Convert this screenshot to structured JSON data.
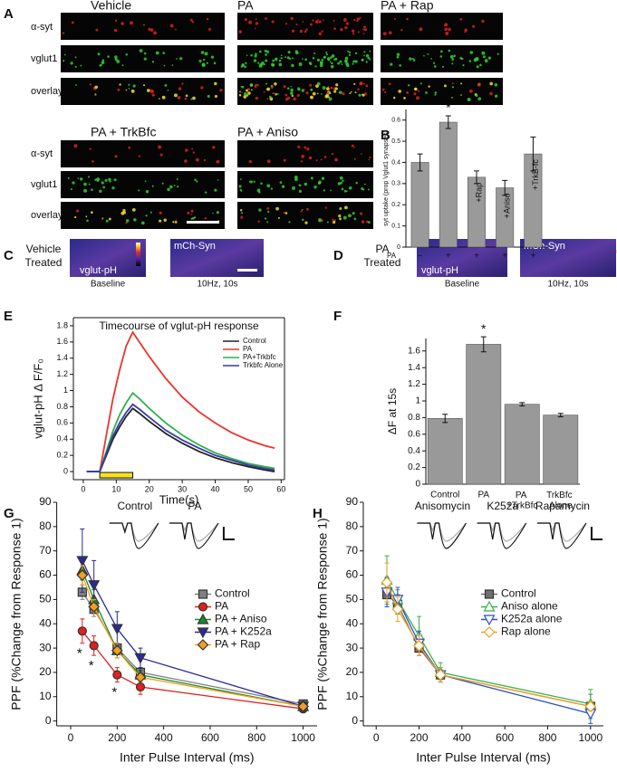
{
  "panel_labels": [
    "A",
    "B",
    "C",
    "D",
    "E",
    "F",
    "G",
    "H"
  ],
  "panel_a": {
    "conditions": [
      "Vehicle",
      "PA",
      "PA + Rap",
      "PA + TrkBfc",
      "PA + Aniso"
    ],
    "rows": [
      "α-syt",
      "vglut1",
      "overlay"
    ]
  },
  "panel_c": {
    "treatment": [
      "Vehicle",
      "Treated"
    ],
    "channels": [
      "vglut-pH",
      "mCh-Syn"
    ],
    "timepoints": [
      "Baseline",
      "10Hz, 10s"
    ]
  },
  "panel_d": {
    "treatment": [
      "PA",
      "Treated"
    ],
    "channels": [
      "vglut-pH",
      "mCh-Syn"
    ],
    "timepoints": [
      "Baseline",
      "10Hz, 10s"
    ]
  },
  "chart_data": [
    {
      "type": "bar",
      "ylabel": "syt uptake (prop Vglut1 synapses)",
      "xlabel": "PA",
      "categories": [
        "−",
        "+",
        "+",
        "+",
        "+"
      ],
      "values": [
        0.4,
        0.59,
        0.33,
        0.28,
        0.44
      ],
      "errors": [
        0.04,
        0.03,
        0.03,
        0.035,
        0.08
      ],
      "bar_labels": [
        null,
        null,
        "+Rap",
        "+Aniso",
        "+TrkB-fc"
      ],
      "significance": [
        null,
        "*",
        null,
        null,
        null
      ],
      "color": "#9a9a9a",
      "ylim": [
        0,
        0.65
      ],
      "yticks": [
        0,
        0.1,
        0.2,
        0.3,
        0.4,
        0.5,
        0.6
      ]
    },
    {
      "type": "line",
      "title": "Timecourse of vglut-pH response",
      "xlabel": "Time(s)",
      "ylabel": "vglut-pH Δ F/F₀",
      "x": [
        1,
        3,
        5,
        7,
        9,
        11,
        13,
        15,
        17,
        20,
        25,
        30,
        35,
        40,
        45,
        50,
        55,
        58
      ],
      "series": [
        {
          "name": "Control",
          "color": "#222222",
          "values": [
            0,
            0,
            0,
            0.2,
            0.4,
            0.55,
            0.68,
            0.78,
            0.72,
            0.62,
            0.47,
            0.35,
            0.25,
            0.17,
            0.11,
            0.06,
            0.02,
            0
          ]
        },
        {
          "name": "PA",
          "color": "#e8352b",
          "values": [
            0,
            0,
            0,
            0.45,
            0.9,
            1.25,
            1.55,
            1.72,
            1.6,
            1.42,
            1.15,
            0.92,
            0.74,
            0.6,
            0.48,
            0.39,
            0.32,
            0.29
          ]
        },
        {
          "name": "PA+Trkbfc",
          "color": "#2bb24c",
          "values": [
            0,
            0,
            0,
            0.25,
            0.5,
            0.7,
            0.85,
            0.97,
            0.9,
            0.78,
            0.6,
            0.45,
            0.33,
            0.23,
            0.16,
            0.1,
            0.06,
            0.04
          ]
        },
        {
          "name": "Trkbfc Alone",
          "color": "#3a3aa8",
          "values": [
            0,
            0,
            0,
            0.22,
            0.44,
            0.6,
            0.73,
            0.83,
            0.77,
            0.67,
            0.51,
            0.39,
            0.29,
            0.2,
            0.14,
            0.08,
            0.04,
            0.02
          ]
        }
      ],
      "stimulus": [
        5,
        15
      ],
      "stimulus_color": "#f5e31a",
      "frame": true,
      "legend": "upper right",
      "xlim": [
        -3,
        61
      ],
      "ylim": [
        -0.1,
        1.9
      ],
      "xticks": [
        0,
        10,
        20,
        30,
        40,
        50,
        60
      ],
      "yticks": [
        0,
        0.2,
        0.4,
        0.6,
        0.8,
        1,
        1.2,
        1.4,
        1.6,
        1.8
      ]
    },
    {
      "type": "bar",
      "ylabel": "ΔF at 15s",
      "categories": [
        "Control",
        "PA",
        "PA +TrkBfc",
        "TrkBfc Alone"
      ],
      "values": [
        0.79,
        1.68,
        0.96,
        0.83
      ],
      "errors": [
        0.05,
        0.09,
        0.02,
        0.02
      ],
      "significance": [
        null,
        "*",
        null,
        null
      ],
      "color": "#999999",
      "ylim": [
        0,
        1.75
      ],
      "yticks": [
        0,
        0.2,
        0.4,
        0.6,
        0.8,
        1,
        1.2,
        1.4,
        1.6
      ]
    },
    {
      "type": "line",
      "xlabel": "Inter Pulse Interval (ms)",
      "ylabel": "PPF (%Change from Response 1)",
      "x": [
        50,
        100,
        200,
        300,
        1000
      ],
      "series": [
        {
          "name": "Control",
          "color": "#808080",
          "marker": "square",
          "filled": true,
          "values": [
            53,
            46,
            30,
            20,
            7
          ],
          "errors": [
            3,
            3,
            2,
            2,
            1
          ]
        },
        {
          "name": "PA",
          "color": "#e0201b",
          "marker": "circle",
          "filled": true,
          "values": [
            37,
            31,
            19,
            14,
            5
          ],
          "errors": [
            5,
            4,
            3,
            3,
            1
          ],
          "significance": [
            "*",
            "*",
            "*",
            null,
            null
          ]
        },
        {
          "name": "PA + Aniso",
          "color": "#1a8a2a",
          "marker": "triangle-up",
          "filled": true,
          "values": [
            62,
            50,
            29,
            19,
            6
          ],
          "errors": [
            4,
            4,
            3,
            2,
            1
          ]
        },
        {
          "name": "PA + K252a",
          "color": "#2a2a9a",
          "marker": "triangle-down",
          "filled": true,
          "values": [
            66,
            56,
            38,
            26,
            6
          ],
          "errors": [
            13,
            10,
            7,
            4,
            2
          ]
        },
        {
          "name": "PA + Rap",
          "color": "#f0a020",
          "marker": "diamond",
          "filled": true,
          "values": [
            60,
            47,
            29,
            18,
            6
          ],
          "errors": [
            4,
            3,
            3,
            2,
            1
          ]
        }
      ],
      "insets": [
        "Control",
        "PA"
      ],
      "legend": "center right",
      "xlim": [
        -60,
        1060
      ],
      "ylim": [
        -2,
        90
      ],
      "xticks": [
        0,
        200,
        400,
        600,
        800,
        1000
      ],
      "yticks": [
        0,
        10,
        20,
        30,
        40,
        50,
        60,
        70,
        80,
        90
      ]
    },
    {
      "type": "line",
      "xlabel": "Inter Pulse Interval (ms)",
      "ylabel": "PPF (%Change from Response 1)",
      "x": [
        50,
        100,
        200,
        300,
        1000
      ],
      "series": [
        {
          "name": "Control",
          "color": "#707070",
          "marker": "square",
          "filled": true,
          "values": [
            52,
            48,
            30,
            19,
            6
          ],
          "errors": [
            3,
            4,
            3,
            2,
            5
          ]
        },
        {
          "name": "Aniso alone",
          "color": "#3ab04a",
          "marker": "triangle-up",
          "filled": false,
          "values": [
            58,
            50,
            35,
            20,
            7
          ],
          "errors": [
            10,
            4,
            8,
            4,
            6
          ]
        },
        {
          "name": "K252a alone",
          "color": "#3050c0",
          "marker": "triangle-down",
          "filled": false,
          "values": [
            53,
            50,
            32,
            19,
            3
          ],
          "errors": [
            6,
            5,
            5,
            3,
            4
          ]
        },
        {
          "name": "Rap alone",
          "color": "#f0a020",
          "marker": "diamond",
          "filled": false,
          "values": [
            57,
            46,
            31,
            19,
            6
          ],
          "errors": [
            8,
            5,
            4,
            3,
            2
          ]
        }
      ],
      "insets": [
        "Anisomycin",
        "K252a",
        "Rapamycin"
      ],
      "legend": "center right",
      "xlim": [
        -60,
        1060
      ],
      "ylim": [
        -2,
        90
      ],
      "xticks": [
        0,
        200,
        400,
        600,
        800,
        1000
      ],
      "yticks": [
        0,
        10,
        20,
        30,
        40,
        50,
        60,
        70,
        80,
        90
      ]
    }
  ]
}
